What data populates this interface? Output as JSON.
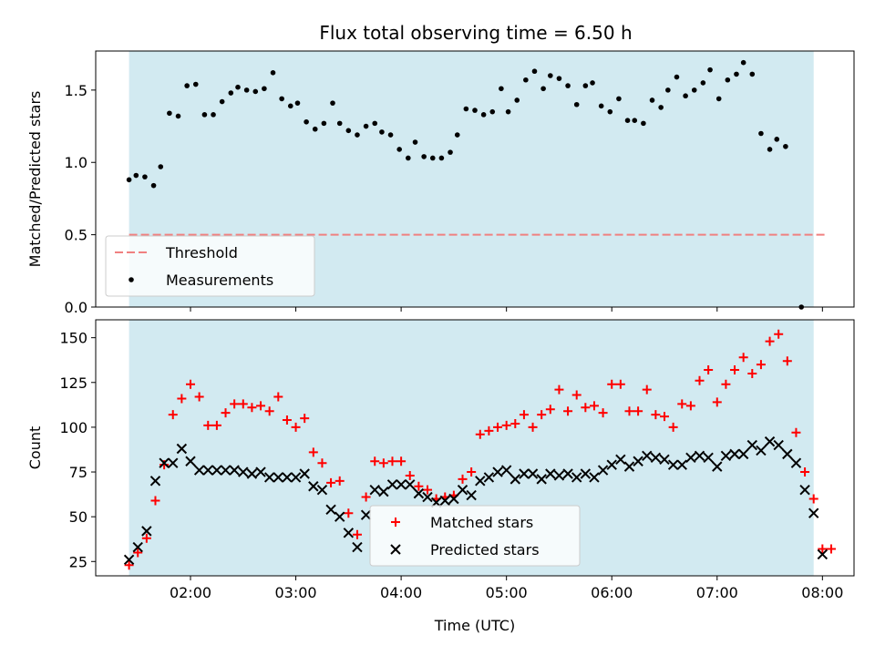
{
  "chart_data": [
    {
      "type": "scatter",
      "title": "Flux total observing time = 6.50 h",
      "ylabel": "Matched/Predicted stars",
      "xlabel": "",
      "xlim": [
        "01:06",
        "08:18"
      ],
      "ylim": [
        0,
        1.77
      ],
      "x_ticks": [
        "02:00",
        "03:00",
        "04:00",
        "05:00",
        "06:00",
        "07:00",
        "08:00"
      ],
      "y_ticks": [
        "0.0",
        "0.5",
        "1.0",
        "1.5"
      ],
      "y_tick_values": [
        0,
        0.5,
        1.0,
        1.5
      ],
      "shaded_span": [
        "01:25",
        "07:55"
      ],
      "shade_color": "#add8e6",
      "threshold": 0.5,
      "threshold_color": "#f08080",
      "legend_position": "lower-left",
      "legend": [
        "Threshold",
        "Measurements"
      ],
      "series": [
        {
          "name": "Measurements",
          "marker": "dot",
          "color": "#000000",
          "points": [
            [
              "01:25",
              0.88
            ],
            [
              "01:29",
              0.91
            ],
            [
              "01:34",
              0.9
            ],
            [
              "01:39",
              0.84
            ],
            [
              "01:43",
              0.97
            ],
            [
              "01:48",
              1.34
            ],
            [
              "01:53",
              1.32
            ],
            [
              "01:58",
              1.53
            ],
            [
              "02:03",
              1.54
            ],
            [
              "02:08",
              1.33
            ],
            [
              "02:13",
              1.33
            ],
            [
              "02:18",
              1.42
            ],
            [
              "02:23",
              1.48
            ],
            [
              "02:27",
              1.52
            ],
            [
              "02:32",
              1.5
            ],
            [
              "02:37",
              1.49
            ],
            [
              "02:42",
              1.51
            ],
            [
              "02:47",
              1.62
            ],
            [
              "02:52",
              1.44
            ],
            [
              "02:57",
              1.39
            ],
            [
              "03:01",
              1.41
            ],
            [
              "03:06",
              1.28
            ],
            [
              "03:11",
              1.23
            ],
            [
              "03:16",
              1.27
            ],
            [
              "03:21",
              1.41
            ],
            [
              "03:25",
              1.27
            ],
            [
              "03:30",
              1.22
            ],
            [
              "03:35",
              1.19
            ],
            [
              "03:40",
              1.25
            ],
            [
              "03:45",
              1.27
            ],
            [
              "03:49",
              1.21
            ],
            [
              "03:54",
              1.19
            ],
            [
              "03:59",
              1.09
            ],
            [
              "04:04",
              1.03
            ],
            [
              "04:08",
              1.14
            ],
            [
              "04:13",
              1.04
            ],
            [
              "04:18",
              1.03
            ],
            [
              "04:23",
              1.03
            ],
            [
              "04:28",
              1.07
            ],
            [
              "04:32",
              1.19
            ],
            [
              "04:37",
              1.37
            ],
            [
              "04:42",
              1.36
            ],
            [
              "04:47",
              1.33
            ],
            [
              "04:52",
              1.35
            ],
            [
              "04:57",
              1.51
            ],
            [
              "05:01",
              1.35
            ],
            [
              "05:06",
              1.43
            ],
            [
              "05:11",
              1.57
            ],
            [
              "05:16",
              1.63
            ],
            [
              "05:21",
              1.51
            ],
            [
              "05:25",
              1.6
            ],
            [
              "05:30",
              1.58
            ],
            [
              "05:35",
              1.53
            ],
            [
              "05:40",
              1.4
            ],
            [
              "05:45",
              1.53
            ],
            [
              "05:49",
              1.55
            ],
            [
              "05:54",
              1.39
            ],
            [
              "05:59",
              1.35
            ],
            [
              "06:04",
              1.44
            ],
            [
              "06:09",
              1.29
            ],
            [
              "06:13",
              1.29
            ],
            [
              "06:18",
              1.27
            ],
            [
              "06:23",
              1.43
            ],
            [
              "06:28",
              1.38
            ],
            [
              "06:32",
              1.5
            ],
            [
              "06:37",
              1.59
            ],
            [
              "06:42",
              1.46
            ],
            [
              "06:47",
              1.5
            ],
            [
              "06:52",
              1.55
            ],
            [
              "06:56",
              1.64
            ],
            [
              "07:01",
              1.44
            ],
            [
              "07:06",
              1.57
            ],
            [
              "07:11",
              1.61
            ],
            [
              "07:15",
              1.69
            ],
            [
              "07:20",
              1.61
            ],
            [
              "07:25",
              1.2
            ],
            [
              "07:30",
              1.09
            ],
            [
              "07:34",
              1.16
            ],
            [
              "07:39",
              1.11
            ],
            [
              "07:48",
              0.0
            ]
          ]
        }
      ]
    },
    {
      "type": "scatter",
      "title": "",
      "ylabel": "Count",
      "xlabel": "Time (UTC)",
      "xlim": [
        "01:06",
        "08:18"
      ],
      "ylim": [
        17,
        160
      ],
      "x_ticks": [
        "02:00",
        "03:00",
        "04:00",
        "05:00",
        "06:00",
        "07:00",
        "08:00"
      ],
      "y_ticks": [
        "25",
        "50",
        "75",
        "100",
        "125",
        "150"
      ],
      "y_tick_values": [
        25,
        50,
        75,
        100,
        125,
        150
      ],
      "shaded_span": [
        "01:25",
        "07:55"
      ],
      "shade_color": "#add8e6",
      "legend_position": "lower-center",
      "legend": [
        "Matched stars",
        "Predicted stars"
      ],
      "series": [
        {
          "name": "Matched stars",
          "marker": "plus",
          "color": "#ff0000",
          "points": [
            [
              "01:25",
              23
            ],
            [
              "01:30",
              30
            ],
            [
              "01:35",
              38
            ],
            [
              "01:40",
              59
            ],
            [
              "01:45",
              79
            ],
            [
              "01:50",
              107
            ],
            [
              "01:55",
              116
            ],
            [
              "02:00",
              124
            ],
            [
              "02:05",
              117
            ],
            [
              "02:10",
              101
            ],
            [
              "02:15",
              101
            ],
            [
              "02:20",
              108
            ],
            [
              "02:25",
              113
            ],
            [
              "02:30",
              113
            ],
            [
              "02:35",
              111
            ],
            [
              "02:40",
              112
            ],
            [
              "02:45",
              109
            ],
            [
              "02:50",
              117
            ],
            [
              "02:55",
              104
            ],
            [
              "03:00",
              100
            ],
            [
              "03:05",
              105
            ],
            [
              "03:10",
              86
            ],
            [
              "03:15",
              80
            ],
            [
              "03:20",
              69
            ],
            [
              "03:25",
              70
            ],
            [
              "03:30",
              52
            ],
            [
              "03:35",
              40
            ],
            [
              "03:40",
              61
            ],
            [
              "03:45",
              81
            ],
            [
              "03:50",
              80
            ],
            [
              "03:55",
              81
            ],
            [
              "04:00",
              81
            ],
            [
              "04:05",
              73
            ],
            [
              "04:10",
              67
            ],
            [
              "04:15",
              65
            ],
            [
              "04:20",
              60
            ],
            [
              "04:25",
              61
            ],
            [
              "04:30",
              62
            ],
            [
              "04:35",
              71
            ],
            [
              "04:40",
              75
            ],
            [
              "04:45",
              96
            ],
            [
              "04:50",
              98
            ],
            [
              "04:55",
              100
            ],
            [
              "05:00",
              101
            ],
            [
              "05:05",
              102
            ],
            [
              "05:10",
              107
            ],
            [
              "05:15",
              100
            ],
            [
              "05:20",
              107
            ],
            [
              "05:25",
              110
            ],
            [
              "05:30",
              121
            ],
            [
              "05:35",
              109
            ],
            [
              "05:40",
              118
            ],
            [
              "05:45",
              111
            ],
            [
              "05:50",
              112
            ],
            [
              "05:55",
              108
            ],
            [
              "06:00",
              124
            ],
            [
              "06:05",
              124
            ],
            [
              "06:10",
              109
            ],
            [
              "06:15",
              109
            ],
            [
              "06:20",
              121
            ],
            [
              "06:25",
              107
            ],
            [
              "06:30",
              106
            ],
            [
              "06:35",
              100
            ],
            [
              "06:40",
              113
            ],
            [
              "06:45",
              112
            ],
            [
              "06:50",
              126
            ],
            [
              "06:55",
              132
            ],
            [
              "07:00",
              114
            ],
            [
              "07:05",
              124
            ],
            [
              "07:10",
              132
            ],
            [
              "07:15",
              139
            ],
            [
              "07:20",
              130
            ],
            [
              "07:25",
              135
            ],
            [
              "07:30",
              148
            ],
            [
              "07:35",
              152
            ],
            [
              "07:40",
              137
            ],
            [
              "07:45",
              97
            ],
            [
              "07:50",
              75
            ],
            [
              "07:55",
              60
            ],
            [
              "08:00",
              32
            ],
            [
              "08:05",
              32
            ]
          ]
        },
        {
          "name": "Predicted stars",
          "marker": "x",
          "color": "#000000",
          "points": [
            [
              "01:25",
              26
            ],
            [
              "01:30",
              33
            ],
            [
              "01:35",
              42
            ],
            [
              "01:40",
              70
            ],
            [
              "01:45",
              80
            ],
            [
              "01:50",
              80
            ],
            [
              "01:55",
              88
            ],
            [
              "02:00",
              81
            ],
            [
              "02:05",
              76
            ],
            [
              "02:10",
              76
            ],
            [
              "02:15",
              76
            ],
            [
              "02:20",
              76
            ],
            [
              "02:25",
              76
            ],
            [
              "02:30",
              75
            ],
            [
              "02:35",
              74
            ],
            [
              "02:40",
              75
            ],
            [
              "02:45",
              72
            ],
            [
              "02:50",
              72
            ],
            [
              "02:55",
              72
            ],
            [
              "03:00",
              72
            ],
            [
              "03:05",
              74
            ],
            [
              "03:10",
              67
            ],
            [
              "03:15",
              65
            ],
            [
              "03:20",
              54
            ],
            [
              "03:25",
              50
            ],
            [
              "03:30",
              41
            ],
            [
              "03:35",
              33
            ],
            [
              "03:40",
              51
            ],
            [
              "03:45",
              65
            ],
            [
              "03:50",
              64
            ],
            [
              "03:55",
              68
            ],
            [
              "04:00",
              68
            ],
            [
              "04:05",
              68
            ],
            [
              "04:10",
              63
            ],
            [
              "04:15",
              61
            ],
            [
              "04:20",
              58
            ],
            [
              "04:25",
              59
            ],
            [
              "04:30",
              60
            ],
            [
              "04:35",
              65
            ],
            [
              "04:40",
              62
            ],
            [
              "04:45",
              70
            ],
            [
              "04:50",
              72
            ],
            [
              "04:55",
              75
            ],
            [
              "05:00",
              76
            ],
            [
              "05:05",
              71
            ],
            [
              "05:10",
              74
            ],
            [
              "05:15",
              74
            ],
            [
              "05:20",
              71
            ],
            [
              "05:25",
              74
            ],
            [
              "05:30",
              73
            ],
            [
              "05:35",
              74
            ],
            [
              "05:40",
              72
            ],
            [
              "05:45",
              74
            ],
            [
              "05:50",
              72
            ],
            [
              "05:55",
              76
            ],
            [
              "06:00",
              79
            ],
            [
              "06:05",
              82
            ],
            [
              "06:10",
              78
            ],
            [
              "06:15",
              81
            ],
            [
              "06:20",
              84
            ],
            [
              "06:25",
              83
            ],
            [
              "06:30",
              82
            ],
            [
              "06:35",
              79
            ],
            [
              "06:40",
              79
            ],
            [
              "06:45",
              83
            ],
            [
              "06:50",
              84
            ],
            [
              "06:55",
              83
            ],
            [
              "07:00",
              78
            ],
            [
              "07:05",
              84
            ],
            [
              "07:10",
              85
            ],
            [
              "07:15",
              85
            ],
            [
              "07:20",
              90
            ],
            [
              "07:25",
              87
            ],
            [
              "07:30",
              92
            ],
            [
              "07:35",
              90
            ],
            [
              "07:40",
              85
            ],
            [
              "07:45",
              80
            ],
            [
              "07:50",
              65
            ],
            [
              "07:55",
              52
            ],
            [
              "08:00",
              29
            ]
          ]
        }
      ]
    }
  ]
}
